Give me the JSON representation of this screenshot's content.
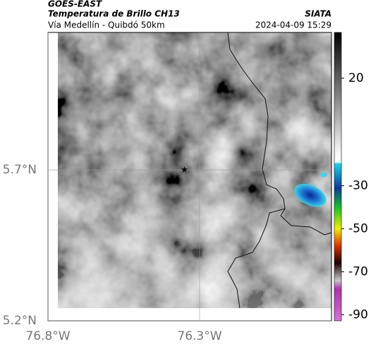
{
  "header": {
    "source": "GOES-EAST",
    "title": "Temperatura de Brillo CH13",
    "agency": "SIATA",
    "subtitle": "Vía Medellín - Quibdó 50km",
    "timestamp": "2024-04-09 15:29"
  },
  "map": {
    "xlim": [
      -76.8,
      -75.865
    ],
    "ylim": [
      5.2,
      6.156
    ],
    "xticks": [
      {
        "value": -76.8,
        "label": "76.8°W"
      },
      {
        "value": -76.3,
        "label": "76.3°W"
      }
    ],
    "yticks": [
      {
        "value": 5.2,
        "label": "5.2°N"
      },
      {
        "value": 5.7,
        "label": "5.7°N"
      }
    ],
    "marker": {
      "lon": -76.35,
      "lat": 5.7
    }
  },
  "colorbar": {
    "clim": [
      -92.8,
      41.3
    ],
    "ticks": [
      20,
      -30,
      -50,
      -70,
      -90
    ]
  }
}
